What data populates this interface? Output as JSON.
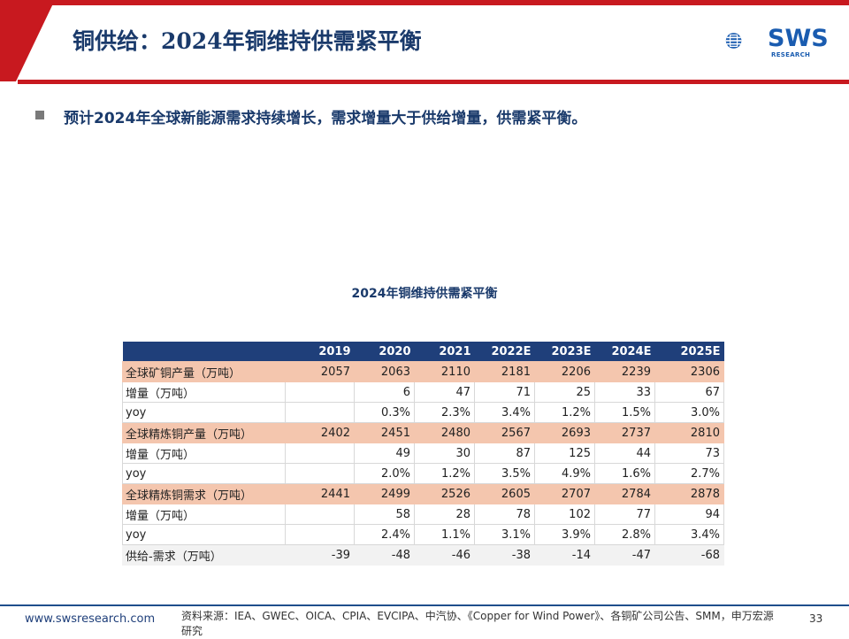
{
  "header": {
    "title": "铜供给：2024年铜维持供需紧平衡",
    "logo_text": "SWS",
    "logo_sub": "RESEARCH",
    "accent_color": "#c8191f",
    "title_color": "#1a3a6b"
  },
  "bullet": {
    "text": "预计2024年全球新能源需求持续增长，需求增量大于供给增量，供需紧平衡。"
  },
  "table": {
    "title": "2024年铜维持供需紧平衡",
    "columns": [
      "",
      "2019",
      "2020",
      "2021",
      "2022E",
      "2023E",
      "2024E",
      "2025E"
    ],
    "rows": [
      [
        "全球矿铜产量（万吨）",
        "2057",
        "2063",
        "2110",
        "2181",
        "2206",
        "2239",
        "2306"
      ],
      [
        "增量（万吨）",
        "",
        "6",
        "47",
        "71",
        "25",
        "33",
        "67"
      ],
      [
        "yoy",
        "",
        "0.3%",
        "2.3%",
        "3.4%",
        "1.2%",
        "1.5%",
        "3.0%"
      ],
      [
        "全球精炼铜产量（万吨）",
        "2402",
        "2451",
        "2480",
        "2567",
        "2693",
        "2737",
        "2810"
      ],
      [
        "增量（万吨）",
        "",
        "49",
        "30",
        "87",
        "125",
        "44",
        "73"
      ],
      [
        "yoy",
        "",
        "2.0%",
        "1.2%",
        "3.5%",
        "4.9%",
        "1.6%",
        "2.7%"
      ],
      [
        "全球精炼铜需求（万吨）",
        "2441",
        "2499",
        "2526",
        "2605",
        "2707",
        "2784",
        "2878"
      ],
      [
        "增量（万吨）",
        "",
        "58",
        "28",
        "78",
        "102",
        "77",
        "94"
      ],
      [
        "yoy",
        "",
        "2.4%",
        "1.1%",
        "3.1%",
        "3.9%",
        "2.8%",
        "3.4%"
      ],
      [
        "供给-需求（万吨）",
        "-39",
        "-48",
        "-46",
        "-38",
        "-14",
        "-47",
        "-68"
      ]
    ]
  },
  "footer": {
    "url": "www.swsresearch.com",
    "source": "资料来源：IEA、GWEC、OICA、CPIA、EVCIPA、中汽协、《Copper for Wind Power》、各铜矿公司公告、SMM，申万宏源研究",
    "page": "33"
  }
}
